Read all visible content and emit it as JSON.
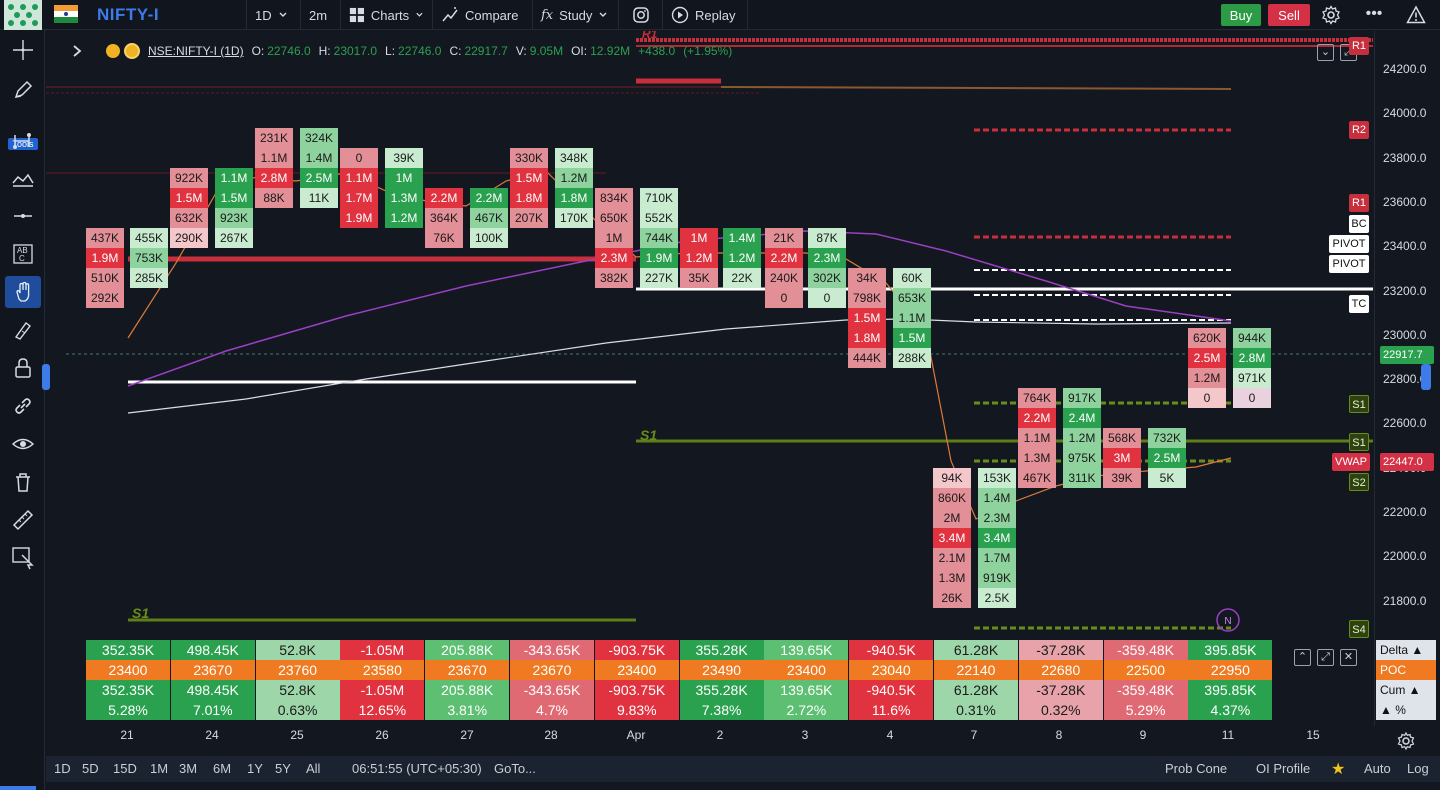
{
  "toolbar": {
    "symbol": "NIFTY-I",
    "interval": "1D",
    "timeframe": "2m",
    "charts_label": "Charts",
    "compare_label": "Compare",
    "study_label": "Study",
    "replay_label": "Replay",
    "buy_label": "Buy",
    "sell_label": "Sell"
  },
  "left_toolbar": {
    "tools_tag": "Tools"
  },
  "legend": {
    "symbol": "NSE:NIFTY-I (1D)",
    "o_label": "O:",
    "o": "22746.0",
    "h_label": "H:",
    "h": "23017.0",
    "l_label": "L:",
    "l": "22746.0",
    "c_label": "C:",
    "c": "22917.7",
    "v_label": "V:",
    "v": "9.05M",
    "oi_label": "OI:",
    "oi": "12.92M",
    "change": "+438.0",
    "change_pct": "(+1.95%)"
  },
  "price_axis": {
    "ticks": [
      "24200.0",
      "24000.0",
      "23800.0",
      "23600.0",
      "23400.0",
      "23200.0",
      "23000.0",
      "22800.0",
      "22600.0",
      "22400.0",
      "22200.0",
      "22000.0",
      "21800.0"
    ],
    "current_price": "22917.7",
    "vwap_label": "VWAP",
    "vwap_price": "22447.0",
    "levels": [
      {
        "label": "R1",
        "kind": "r"
      },
      {
        "label": "R2",
        "kind": "r"
      },
      {
        "label": "R1",
        "kind": "r"
      },
      {
        "label": "BC",
        "kind": "w"
      },
      {
        "label": "PIVOT",
        "kind": "w"
      },
      {
        "label": "PIVOT",
        "kind": "w"
      },
      {
        "label": "TC",
        "kind": "w"
      },
      {
        "label": "S1",
        "kind": "g"
      },
      {
        "label": "S1",
        "kind": "g"
      },
      {
        "label": "S2",
        "kind": "g"
      },
      {
        "label": "S4",
        "kind": "g"
      }
    ]
  },
  "chart_labels": {
    "s1_a": "S1",
    "s1_b": "S1",
    "r1_top": "R1",
    "news_marker": "N"
  },
  "footprint": [
    {
      "cells": [
        [
          "437K",
          "sell"
        ],
        [
          "1.9M",
          "sellhi"
        ],
        [
          "510K",
          "sell"
        ],
        [
          "292K",
          "sell"
        ]
      ]
    },
    {
      "cells": [
        [
          "455K",
          "buy2"
        ],
        [
          "753K",
          "buy"
        ],
        [
          "285K",
          "buy2"
        ]
      ]
    },
    {
      "cells": [
        [
          "922K",
          "sell"
        ],
        [
          "1.5M",
          "sellhi"
        ],
        [
          "632K",
          "sell"
        ],
        [
          "290K",
          "sell2"
        ]
      ]
    },
    {
      "cells": [
        [
          "1.1M",
          "buyhi"
        ],
        [
          "1.5M",
          "buyhi"
        ],
        [
          "923K",
          "buy"
        ],
        [
          "267K",
          "buy2"
        ]
      ]
    },
    {
      "cells": [
        [
          "231K",
          "sell"
        ],
        [
          "1.1M",
          "sell"
        ],
        [
          "2.8M",
          "sellhi"
        ],
        [
          "88K",
          "sell"
        ]
      ]
    },
    {
      "cells": [
        [
          "324K",
          "buy"
        ],
        [
          "1.4M",
          "buy"
        ],
        [
          "2.5M",
          "buyhi"
        ],
        [
          "11K",
          "buy2"
        ]
      ]
    },
    {
      "cells": [
        [
          "0",
          "sell"
        ],
        [
          "1.1M",
          "sellhi"
        ],
        [
          "1.7M",
          "sellhi"
        ],
        [
          "1.9M",
          "sellhi"
        ]
      ]
    },
    {
      "cells": [
        [
          "39K",
          "buy2"
        ],
        [
          "1M",
          "buyhi"
        ],
        [
          "1.3M",
          "buyhi"
        ],
        [
          "1.2M",
          "buyhi"
        ]
      ]
    },
    {
      "cells": [
        [
          "2.2M",
          "sellhi"
        ],
        [
          "364K",
          "sell"
        ],
        [
          "76K",
          "sell"
        ]
      ]
    },
    {
      "cells": [
        [
          "2.2M",
          "buyhi"
        ],
        [
          "467K",
          "buy"
        ],
        [
          "100K",
          "buy2"
        ]
      ]
    },
    {
      "cells": [
        [
          "330K",
          "sell"
        ],
        [
          "1.5M",
          "sellhi"
        ],
        [
          "1.8M",
          "sellhi"
        ],
        [
          "207K",
          "sell"
        ]
      ]
    },
    {
      "cells": [
        [
          "348K",
          "buy2"
        ],
        [
          "1.2M",
          "buy"
        ],
        [
          "1.8M",
          "buyhi"
        ],
        [
          "170K",
          "buy2"
        ]
      ]
    },
    {
      "cells": [
        [
          "834K",
          "sell"
        ],
        [
          "650K",
          "sell"
        ],
        [
          "1M",
          "sell"
        ],
        [
          "2.3M",
          "sellhi"
        ],
        [
          "382K",
          "sell"
        ]
      ]
    },
    {
      "cells": [
        [
          "710K",
          "buy2"
        ],
        [
          "552K",
          "buy2"
        ],
        [
          "744K",
          "buy"
        ],
        [
          "1.9M",
          "buyhi"
        ],
        [
          "227K",
          "buy2"
        ]
      ]
    },
    {
      "cells": [
        [
          "1M",
          "sellhi"
        ],
        [
          "1.2M",
          "sellhi"
        ],
        [
          "35K",
          "sell"
        ]
      ]
    },
    {
      "cells": [
        [
          "1.4M",
          "buyhi"
        ],
        [
          "1.2M",
          "buyhi"
        ],
        [
          "22K",
          "buy2"
        ]
      ]
    },
    {
      "cells": [
        [
          "21K",
          "sell"
        ],
        [
          "2.2M",
          "sellhi"
        ],
        [
          "240K",
          "sell"
        ],
        [
          "0",
          "sell"
        ]
      ]
    },
    {
      "cells": [
        [
          "87K",
          "buy2"
        ],
        [
          "2.3M",
          "buyhi"
        ],
        [
          "302K",
          "buy"
        ],
        [
          "0",
          "buy2"
        ]
      ]
    },
    {
      "cells": [
        [
          "34K",
          "sell"
        ],
        [
          "798K",
          "sell"
        ],
        [
          "1.5M",
          "sellhi"
        ],
        [
          "1.8M",
          "sellhi"
        ],
        [
          "444K",
          "sell"
        ]
      ]
    },
    {
      "cells": [
        [
          "60K",
          "buy2"
        ],
        [
          "653K",
          "buy"
        ],
        [
          "1.1M",
          "buy"
        ],
        [
          "1.5M",
          "buyhi"
        ],
        [
          "288K",
          "buy2"
        ]
      ]
    },
    {
      "cells": [
        [
          "94K",
          "sell2"
        ],
        [
          "860K",
          "sell"
        ],
        [
          "2M",
          "sell"
        ],
        [
          "3.4M",
          "sellhi"
        ],
        [
          "2.1M",
          "sell"
        ],
        [
          "1.3M",
          "sell"
        ],
        [
          "26K",
          "sell"
        ]
      ]
    },
    {
      "cells": [
        [
          "153K",
          "buy2"
        ],
        [
          "1.4M",
          "buy"
        ],
        [
          "2.3M",
          "buy"
        ],
        [
          "3.4M",
          "buyhi"
        ],
        [
          "1.7M",
          "buy"
        ],
        [
          "919K",
          "buy"
        ],
        [
          "2.5K",
          "buy2"
        ]
      ]
    },
    {
      "cells": [
        [
          "764K",
          "sell"
        ],
        [
          "2.2M",
          "sellhi"
        ],
        [
          "1.1M",
          "sell"
        ],
        [
          "1.3M",
          "sell"
        ],
        [
          "467K",
          "sell"
        ]
      ]
    },
    {
      "cells": [
        [
          "917K",
          "buy"
        ],
        [
          "2.4M",
          "buyhi"
        ],
        [
          "1.2M",
          "buy"
        ],
        [
          "975K",
          "buy"
        ],
        [
          "311K",
          "buy"
        ]
      ]
    },
    {
      "cells": [
        [
          "568K",
          "sell"
        ],
        [
          "3M",
          "sellhi"
        ],
        [
          "39K",
          "sell"
        ]
      ]
    },
    {
      "cells": [
        [
          "732K",
          "buy"
        ],
        [
          "2.5M",
          "buyhi"
        ],
        [
          "5K",
          "buy2"
        ]
      ]
    },
    {
      "cells": [
        [
          "620K",
          "sell"
        ],
        [
          "2.5M",
          "sellhi"
        ],
        [
          "1.2M",
          "sell"
        ],
        [
          "0",
          "sell2"
        ]
      ]
    },
    {
      "cells": [
        [
          "944K",
          "buy"
        ],
        [
          "2.8M",
          "buyhi"
        ],
        [
          "971K",
          "buy2"
        ],
        [
          "0",
          "neutral"
        ]
      ]
    }
  ],
  "stats": {
    "labels": [
      "Delta ▲",
      "POC",
      "Cum ▲",
      "▲ %"
    ],
    "delta": [
      "352.35K",
      "498.45K",
      "52.8K",
      "-1.05M",
      "205.88K",
      "-343.65K",
      "-903.75K",
      "355.28K",
      "139.65K",
      "-940.5K",
      "61.28K",
      "-37.28K",
      "-359.48K",
      "395.85K"
    ],
    "poc": [
      "23400",
      "23670",
      "23760",
      "23580",
      "23670",
      "23670",
      "23400",
      "23490",
      "23400",
      "23040",
      "22140",
      "22680",
      "22500",
      "22950"
    ],
    "cum": [
      "352.35K",
      "498.45K",
      "52.8K",
      "-1.05M",
      "205.88K",
      "-343.65K",
      "-903.75K",
      "355.28K",
      "139.65K",
      "-940.5K",
      "61.28K",
      "-37.28K",
      "-359.48K",
      "395.85K"
    ],
    "pct": [
      "5.28%",
      "7.01%",
      "0.63%",
      "12.65%",
      "3.81%",
      "4.7%",
      "9.83%",
      "7.38%",
      "2.72%",
      "11.6%",
      "0.31%",
      "0.32%",
      "5.29%",
      "4.37%"
    ]
  },
  "x_axis": {
    "ticks": [
      "21",
      "24",
      "25",
      "26",
      "27",
      "28",
      "Apr",
      "2",
      "3",
      "4",
      "7",
      "8",
      "9",
      "11",
      "15"
    ]
  },
  "bottom_bar": {
    "ranges": [
      "1D",
      "5D",
      "15D",
      "1M",
      "3M",
      "6M",
      "1Y",
      "5Y",
      "All"
    ],
    "clock": "06:51:55 (UTC+05:30)",
    "goto": "GoTo...",
    "prob_cone": "Prob Cone",
    "oi_profile": "OI Profile",
    "auto": "Auto",
    "log": "Log"
  },
  "colors": {
    "accent_blue": "#3d7be8",
    "buy": "#2c9b46",
    "sell": "#d43146",
    "poc": "#f07a21",
    "background": "#13171f"
  }
}
